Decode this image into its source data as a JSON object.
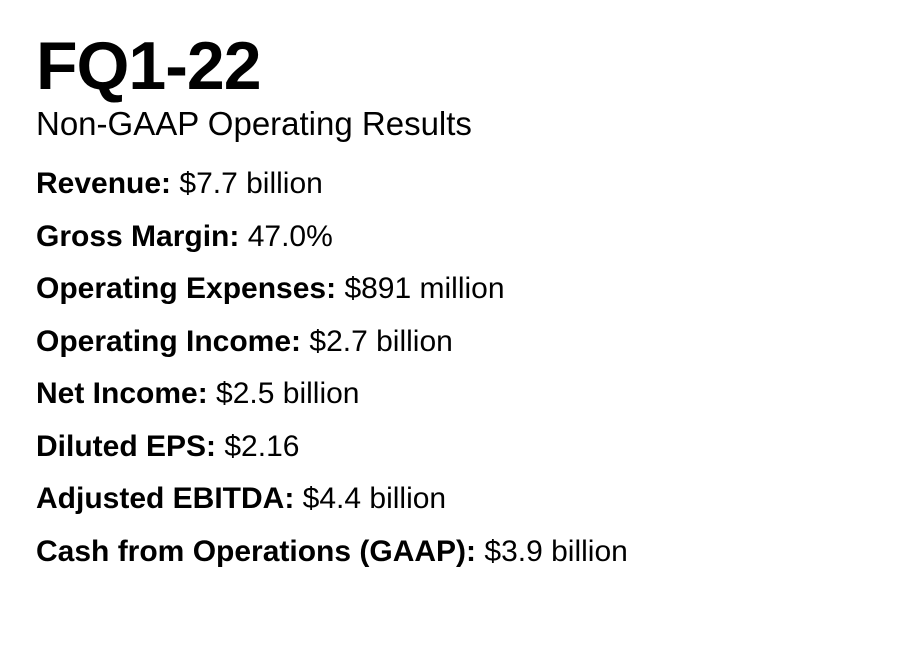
{
  "document": {
    "title": "FQ1-22",
    "subtitle": "Non-GAAP Operating Results",
    "metrics": [
      {
        "label": "Revenue:",
        "value": "$7.7 billion"
      },
      {
        "label": "Gross Margin:",
        "value": "47.0%"
      },
      {
        "label": "Operating Expenses:",
        "value": "$891 million"
      },
      {
        "label": "Operating Income:",
        "value": "$2.7 billion"
      },
      {
        "label": "Net Income:",
        "value": "$2.5 billion"
      },
      {
        "label": "Diluted EPS:",
        "value": "$2.16"
      },
      {
        "label": "Adjusted EBITDA:",
        "value": "$4.4 billion"
      },
      {
        "label": "Cash from Operations (GAAP):",
        "value": "$3.9 billion"
      }
    ]
  }
}
